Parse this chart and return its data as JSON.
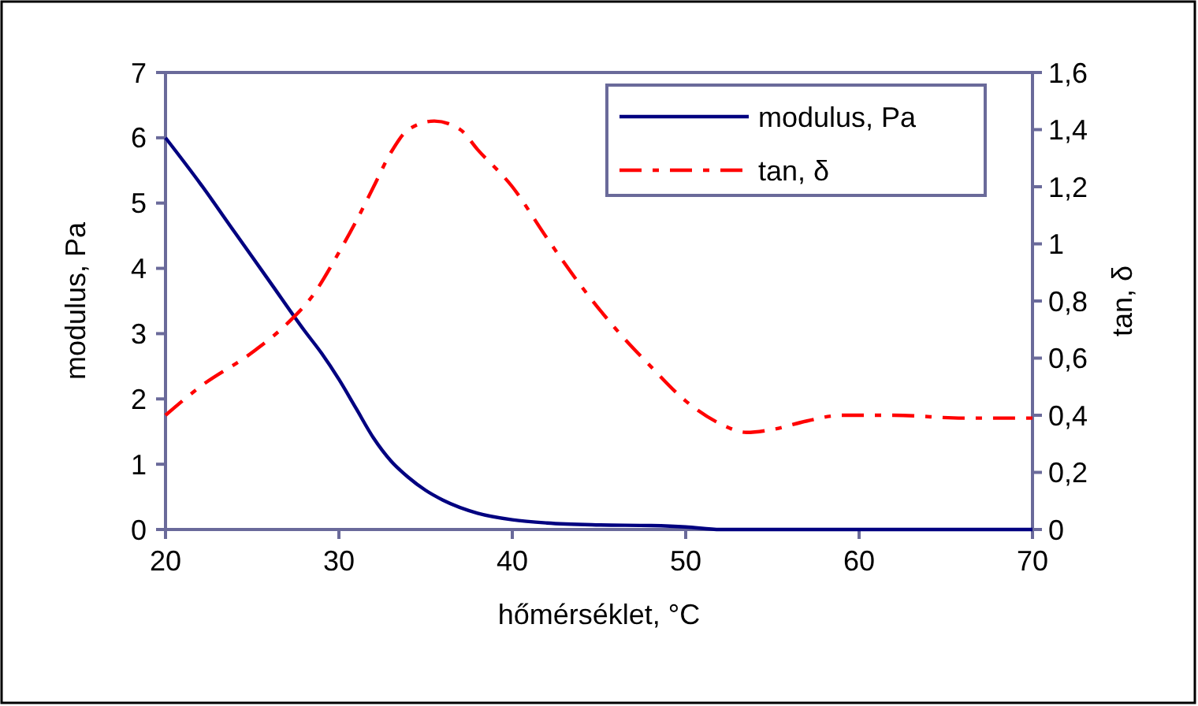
{
  "chart_data": {
    "type": "line",
    "xlabel": "hőmérséklet, °C",
    "ylabel": "modulus, Pa",
    "y2label": "tan, δ",
    "xlim": [
      20,
      70
    ],
    "xticks": [
      20,
      30,
      40,
      50,
      60,
      70
    ],
    "ylim": [
      0,
      7
    ],
    "yticks": [
      0,
      1,
      2,
      3,
      4,
      5,
      6,
      7
    ],
    "y2lim": [
      0,
      1.6
    ],
    "y2ticks": [
      0,
      {
        "value": 0.2,
        "label": "0,2"
      },
      {
        "value": 0.4,
        "label": "0,4"
      },
      {
        "value": 0.6,
        "label": "0,6"
      },
      {
        "value": 0.8,
        "label": "0,8"
      },
      1,
      {
        "value": 1.2,
        "label": "1,2"
      },
      {
        "value": 1.4,
        "label": "1,4"
      },
      {
        "value": 1.6,
        "label": "1,6"
      }
    ],
    "grid": false,
    "legend": "top right",
    "marker": "none",
    "series": [
      {
        "name": "modulus, Pa",
        "color": "#000080",
        "line_style": "solid",
        "x": [
          20,
          22,
          24,
          26,
          28,
          29,
          30,
          31,
          32,
          33,
          34,
          35,
          36,
          38,
          40,
          42,
          45,
          48,
          50,
          52,
          55,
          60,
          65,
          70
        ],
        "values": [
          6,
          5.3,
          4.55,
          3.8,
          3.05,
          2.7,
          2.3,
          1.85,
          1.4,
          1.05,
          0.8,
          0.6,
          0.45,
          0.25,
          0.15,
          0.1,
          0.07,
          0.06,
          0.04,
          0,
          0,
          0,
          0,
          0
        ]
      },
      {
        "name": "tan, δ",
        "color": "#ff0000",
        "line_style": "dashed",
        "axis": "y2",
        "x": [
          20,
          22,
          25,
          27,
          28.5,
          30,
          31,
          32,
          33,
          34,
          35.5,
          37,
          38,
          40,
          42,
          44,
          46,
          48,
          50,
          52,
          53.5,
          55,
          57,
          59,
          62,
          66,
          70
        ],
        "values": [
          0.4,
          0.5,
          0.62,
          0.72,
          0.82,
          0.97,
          1.08,
          1.2,
          1.32,
          1.4,
          1.43,
          1.4,
          1.33,
          1.2,
          1.02,
          0.85,
          0.7,
          0.57,
          0.45,
          0.37,
          0.34,
          0.35,
          0.38,
          0.4,
          0.4,
          0.39,
          0.39
        ]
      }
    ]
  }
}
